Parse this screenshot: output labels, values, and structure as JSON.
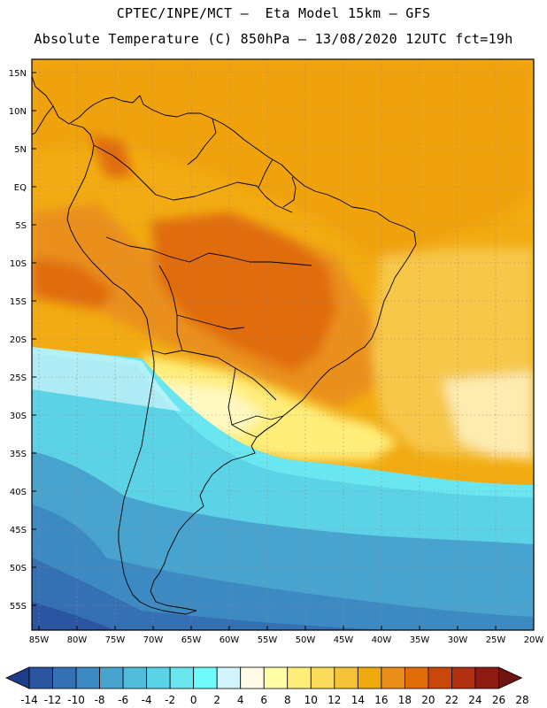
{
  "header": {
    "line1": "CPTEC/INPE/MCT –  Eta Model 15km – GFS",
    "line2": "Absolute Temperature (C) 850hPa – 13/08/2020 12UTC fct=19h"
  },
  "map": {
    "lat_labels": [
      "15N",
      "10N",
      "5N",
      "EQ",
      "5S",
      "10S",
      "15S",
      "20S",
      "25S",
      "30S",
      "35S",
      "40S",
      "45S",
      "50S",
      "55S"
    ],
    "lon_labels": [
      "85W",
      "80W",
      "75W",
      "70W",
      "65W",
      "60W",
      "55W",
      "50W",
      "45W",
      "40W",
      "35W",
      "30W",
      "25W",
      "20W"
    ]
  },
  "colorbar": {
    "labels": [
      "-14",
      "-12",
      "-10",
      "-8",
      "-6",
      "-4",
      "-2",
      "0",
      "2",
      "4",
      "6",
      "8",
      "10",
      "12",
      "14",
      "16",
      "18",
      "20",
      "22",
      "24",
      "26",
      "28"
    ],
    "colors": [
      "#1f3c8c",
      "#2b55a0",
      "#3470b3",
      "#3d8ac2",
      "#48a3cf",
      "#52bcdb",
      "#5bd2e6",
      "#6ae6f0",
      "#70fbfb",
      "#d2f5fb",
      "#fffbe6",
      "#ffffa8",
      "#ffee7a",
      "#fbdc5a",
      "#f3c43a",
      "#efaa0e",
      "#ea8f1a",
      "#e06c0a",
      "#c9470c",
      "#b03010",
      "#8e1a14",
      "#6f140f"
    ]
  }
}
